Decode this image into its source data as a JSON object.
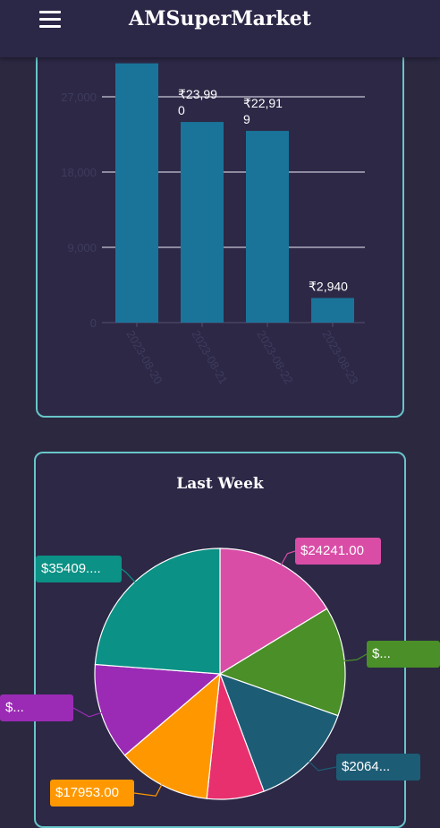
{
  "app": {
    "title": "AMSuperMarket",
    "menu_icon": "hamburger-menu-icon"
  },
  "chart_data": [
    {
      "type": "bar",
      "categories": [
        "2023-08-20",
        "2023-08-21",
        "2023-08-22",
        "2023-08-23"
      ],
      "values": [
        31000,
        23990,
        22919,
        2940
      ],
      "value_labels": [
        "",
        "₹23,990",
        "₹22,919",
        "₹2,940"
      ],
      "yticks": [
        0,
        9000,
        18000,
        27000
      ],
      "ytick_labels": [
        "0",
        "9,000",
        "18,000",
        "27,000"
      ],
      "ylim": [
        0,
        32000
      ],
      "grid": true,
      "bar_color": "#1a749a"
    },
    {
      "type": "pie",
      "title": "Last Week",
      "slices": [
        {
          "label": "$24241.00",
          "value": 24241,
          "color": "#d94da6"
        },
        {
          "label": "$...",
          "value": 21000,
          "color": "#4a8f27"
        },
        {
          "label": "$2064...",
          "value": 20640,
          "color": "#1d5c75"
        },
        {
          "label": "",
          "value": 11000,
          "color": "#e8306e"
        },
        {
          "label": "$17953.00",
          "value": 17953,
          "color": "#ff9800"
        },
        {
          "label": "$...",
          "value": 18500,
          "color": "#9b2bb5"
        },
        {
          "label": "$35409....",
          "value": 35409,
          "color": "#0b9185"
        }
      ]
    }
  ]
}
